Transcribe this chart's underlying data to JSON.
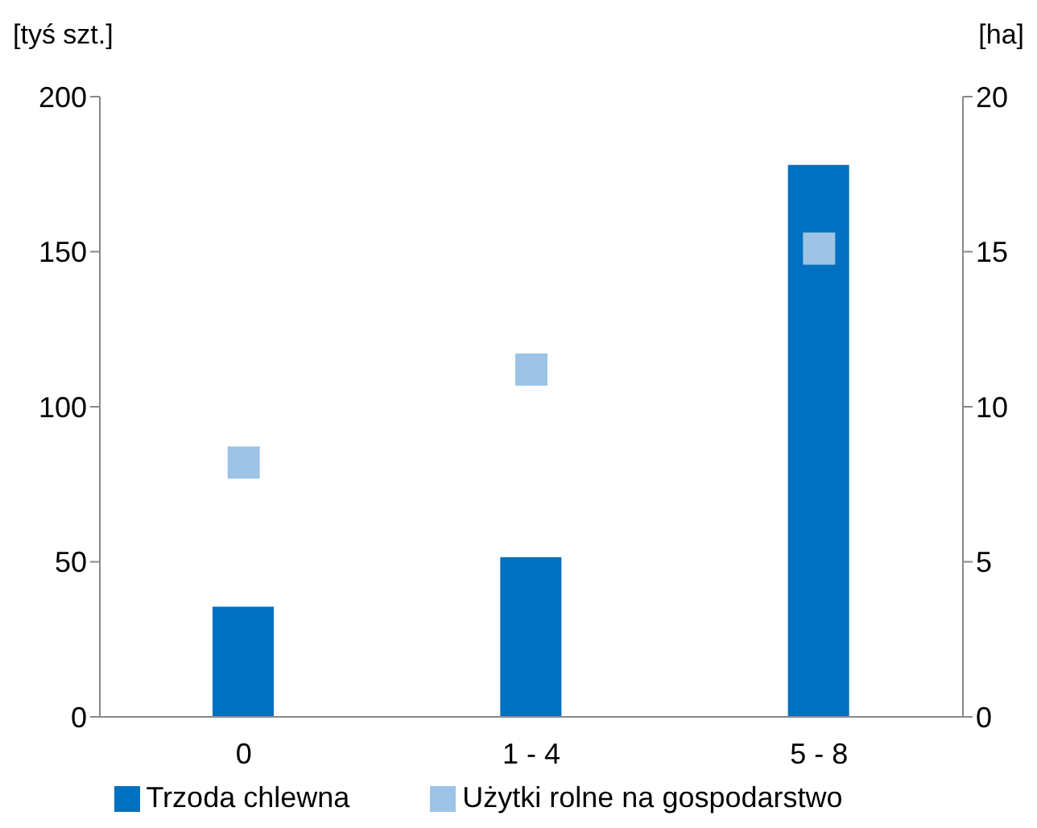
{
  "chart_data": {
    "type": "bar",
    "categories": [
      "0",
      "1 - 4",
      "5 - 8"
    ],
    "ylabel": "[tyś szt.]",
    "y2label": "[ha]",
    "series": [
      {
        "name": "Trzoda chlewna",
        "color": "#0070c0",
        "values": [
          35.5,
          51.5,
          178
        ]
      },
      {
        "name": "Użytki rolne na gospodarstwo",
        "type": "scatter",
        "axis": "y2",
        "color": "#9dc3e6",
        "marker": "square",
        "values": [
          8.2,
          11.2,
          15.1
        ]
      }
    ],
    "ylim": [
      0,
      200
    ],
    "yticks": [
      0,
      50,
      100,
      150,
      200
    ],
    "y2lim": [
      0,
      20
    ],
    "y2ticks": [
      0,
      5,
      10,
      15,
      20
    ],
    "grid": false,
    "legend": "bottom"
  }
}
